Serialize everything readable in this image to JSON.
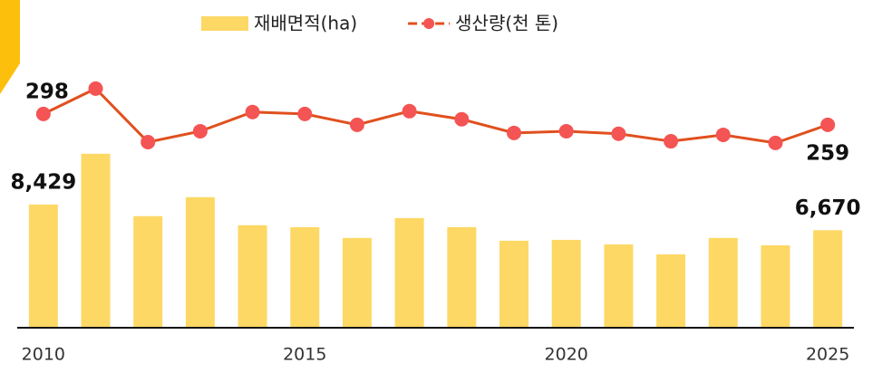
{
  "chart_data": {
    "type": "bar",
    "categories": [
      "2010",
      null,
      null,
      null,
      null,
      "2015",
      null,
      null,
      null,
      null,
      "2020",
      null,
      null,
      null,
      null,
      "2025"
    ],
    "ylim": [
      0,
      18700
    ],
    "y2lim": [
      -469,
      512
    ],
    "legend": "top",
    "series": [
      {
        "name": "재배면적(ha)",
        "type": "bar",
        "color": "#fdd865",
        "values": [
          8429,
          11900,
          7630,
          8930,
          7010,
          6880,
          6140,
          7500,
          6880,
          5950,
          6010,
          5700,
          5020,
          6140,
          5640,
          6670
        ],
        "value_labels": [
          "8,429",
          null,
          null,
          null,
          null,
          null,
          null,
          null,
          null,
          null,
          null,
          null,
          null,
          null,
          null,
          "6,670"
        ]
      },
      {
        "name": "생산량(천 톤)",
        "type": "line",
        "axis": "y2",
        "color": "#e0501e",
        "marker_color": "#f45454",
        "values": [
          298,
          389,
          197,
          236,
          305,
          298,
          259,
          308,
          279,
          230,
          236,
          227,
          200,
          223,
          194,
          259
        ],
        "value_labels": [
          "298",
          null,
          null,
          null,
          null,
          null,
          null,
          null,
          null,
          null,
          null,
          null,
          null,
          null,
          null,
          "259"
        ]
      }
    ]
  }
}
